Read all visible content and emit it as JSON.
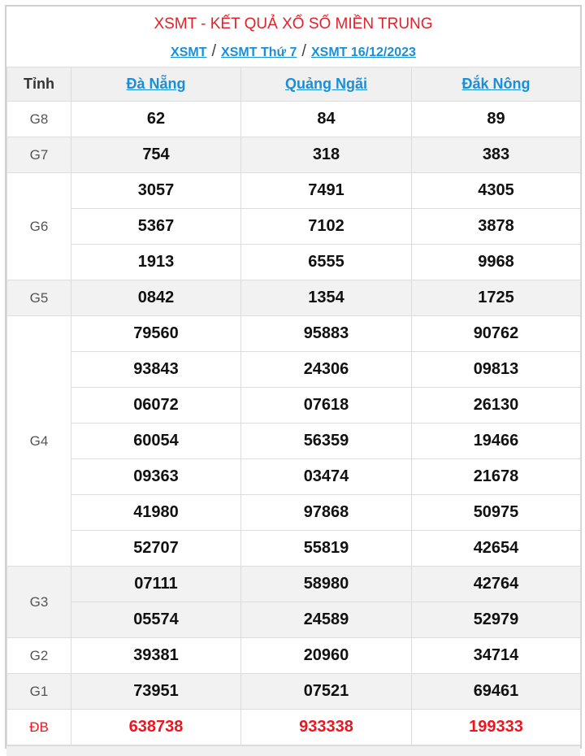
{
  "header": {
    "title": "XSMT - KẾT QUẢ XỔ SỐ MIỀN TRUNG",
    "breadcrumb": [
      "XSMT",
      "XSMT Thứ 7",
      "XSMT 16/12/2023"
    ],
    "separator": "/"
  },
  "table": {
    "col_label": "Tỉnh",
    "provinces": [
      "Đà Nẵng",
      "Quảng Ngãi",
      "Đắk Nông"
    ],
    "prizes": [
      {
        "name": "G8",
        "rows": [
          [
            "62",
            "84",
            "89"
          ]
        ]
      },
      {
        "name": "G7",
        "rows": [
          [
            "754",
            "318",
            "383"
          ]
        ]
      },
      {
        "name": "G6",
        "rows": [
          [
            "3057",
            "7491",
            "4305"
          ],
          [
            "5367",
            "7102",
            "3878"
          ],
          [
            "1913",
            "6555",
            "9968"
          ]
        ]
      },
      {
        "name": "G5",
        "rows": [
          [
            "0842",
            "1354",
            "1725"
          ]
        ]
      },
      {
        "name": "G4",
        "rows": [
          [
            "79560",
            "95883",
            "90762"
          ],
          [
            "93843",
            "24306",
            "09813"
          ],
          [
            "06072",
            "07618",
            "26130"
          ],
          [
            "60054",
            "56359",
            "19466"
          ],
          [
            "09363",
            "03474",
            "21678"
          ],
          [
            "41980",
            "97868",
            "50975"
          ],
          [
            "52707",
            "55819",
            "42654"
          ]
        ]
      },
      {
        "name": "G3",
        "rows": [
          [
            "07111",
            "58980",
            "42764"
          ],
          [
            "05574",
            "24589",
            "52979"
          ]
        ]
      },
      {
        "name": "G2",
        "rows": [
          [
            "39381",
            "20960",
            "34714"
          ]
        ]
      },
      {
        "name": "G1",
        "rows": [
          [
            "73951",
            "07521",
            "69461"
          ]
        ]
      },
      {
        "name": "ĐB",
        "rows": [
          [
            "638738",
            "933338",
            "199333"
          ]
        ],
        "special": true
      }
    ]
  },
  "colors": {
    "title": "#e4202a",
    "link": "#1a8fd8",
    "special": "#f0141e"
  }
}
